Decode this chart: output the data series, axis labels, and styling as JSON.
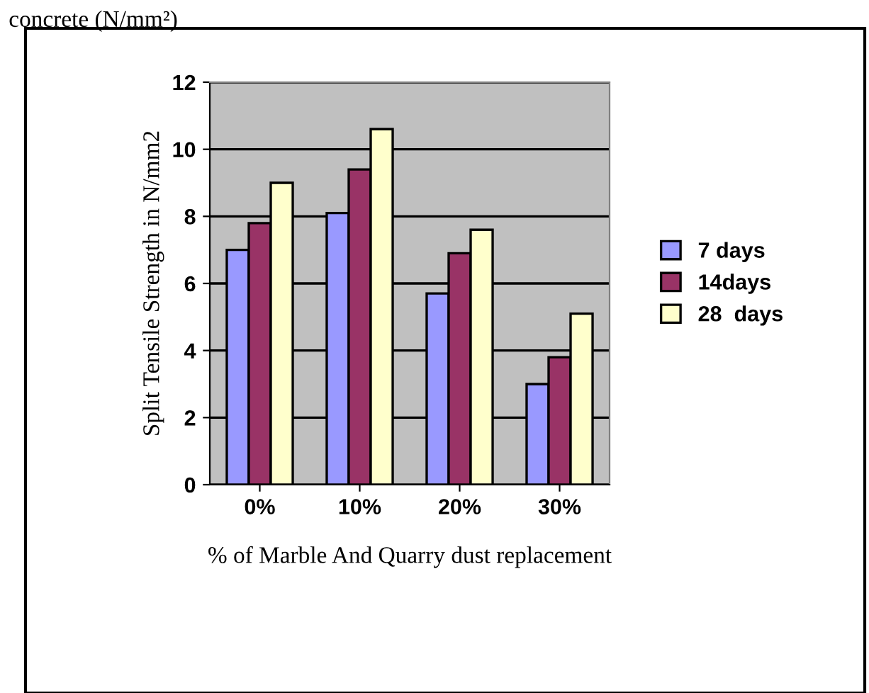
{
  "chart_data": {
    "type": "bar",
    "xlabel": "% of Marble And Quarry dust replacement",
    "ylabel": "Split Tensile Strength in N/mm2",
    "categories": [
      "0%",
      "10%",
      "20%",
      "30%"
    ],
    "series": [
      {
        "name": "7 days",
        "color": "#9999ff",
        "values": [
          7.0,
          8.1,
          5.7,
          3.0
        ]
      },
      {
        "name": "14days",
        "color": "#993366",
        "values": [
          7.8,
          9.4,
          6.9,
          3.8
        ]
      },
      {
        "name": "28  days",
        "color": "#ffffcc",
        "values": [
          9.0,
          10.6,
          7.6,
          5.1
        ]
      }
    ],
    "ylim": [
      0,
      12
    ],
    "yticks": [
      0,
      2,
      4,
      6,
      8,
      10,
      12
    ],
    "grid": "y",
    "legend": "right",
    "annotations": [
      "concrete (N/mm²)"
    ]
  }
}
